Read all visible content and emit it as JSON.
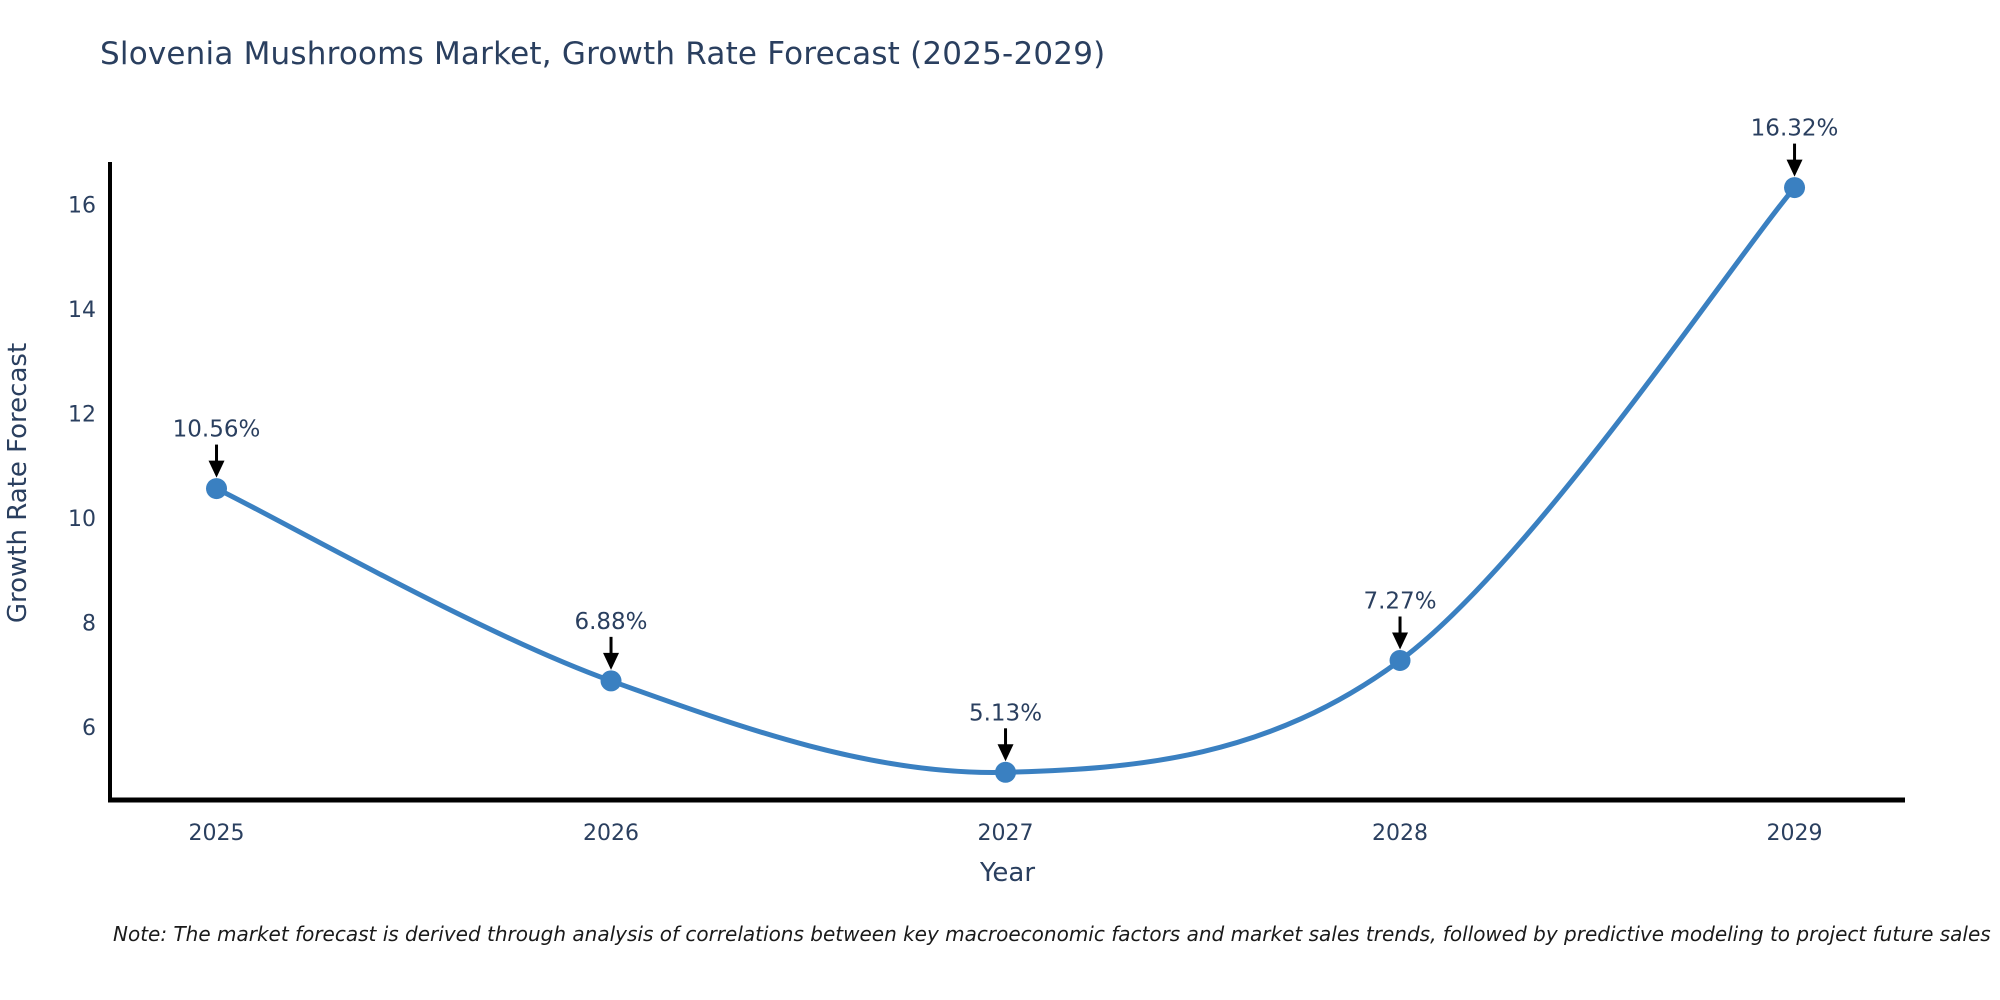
{
  "note": "Note: The market forecast is derived through analysis of correlations between key macroeconomic factors and market sales trends, followed by predictive modeling to project future sales",
  "colors": {
    "accent": "#3a80c1",
    "text": "#2a3f5f",
    "axis": "#000000",
    "annotation_arrow": "#000000",
    "note_text": "#1a1a1a",
    "background": "#ffffff"
  },
  "chart_data": {
    "type": "line",
    "title": "Slovenia Mushrooms Market, Growth Rate Forecast (2025-2029)",
    "xlabel": "Year",
    "ylabel": "Growth Rate Forecast",
    "x": [
      2025,
      2026,
      2027,
      2028,
      2029
    ],
    "values": [
      10.56,
      6.88,
      5.13,
      7.27,
      16.32
    ],
    "point_labels": [
      "10.56%",
      "6.88%",
      "5.13%",
      "7.27%",
      "16.32%"
    ],
    "xticks": [
      "2025",
      "2026",
      "2027",
      "2028",
      "2029"
    ],
    "yticks": [
      6,
      8,
      10,
      12,
      14,
      16
    ],
    "xlim": [
      2024.73,
      2029.28
    ],
    "ylim": [
      4.6,
      16.81
    ],
    "line_shape": "spline",
    "grid": false,
    "legend_position": "none",
    "marker": "circle",
    "annotation_style": "value label with downward arrow to point"
  }
}
